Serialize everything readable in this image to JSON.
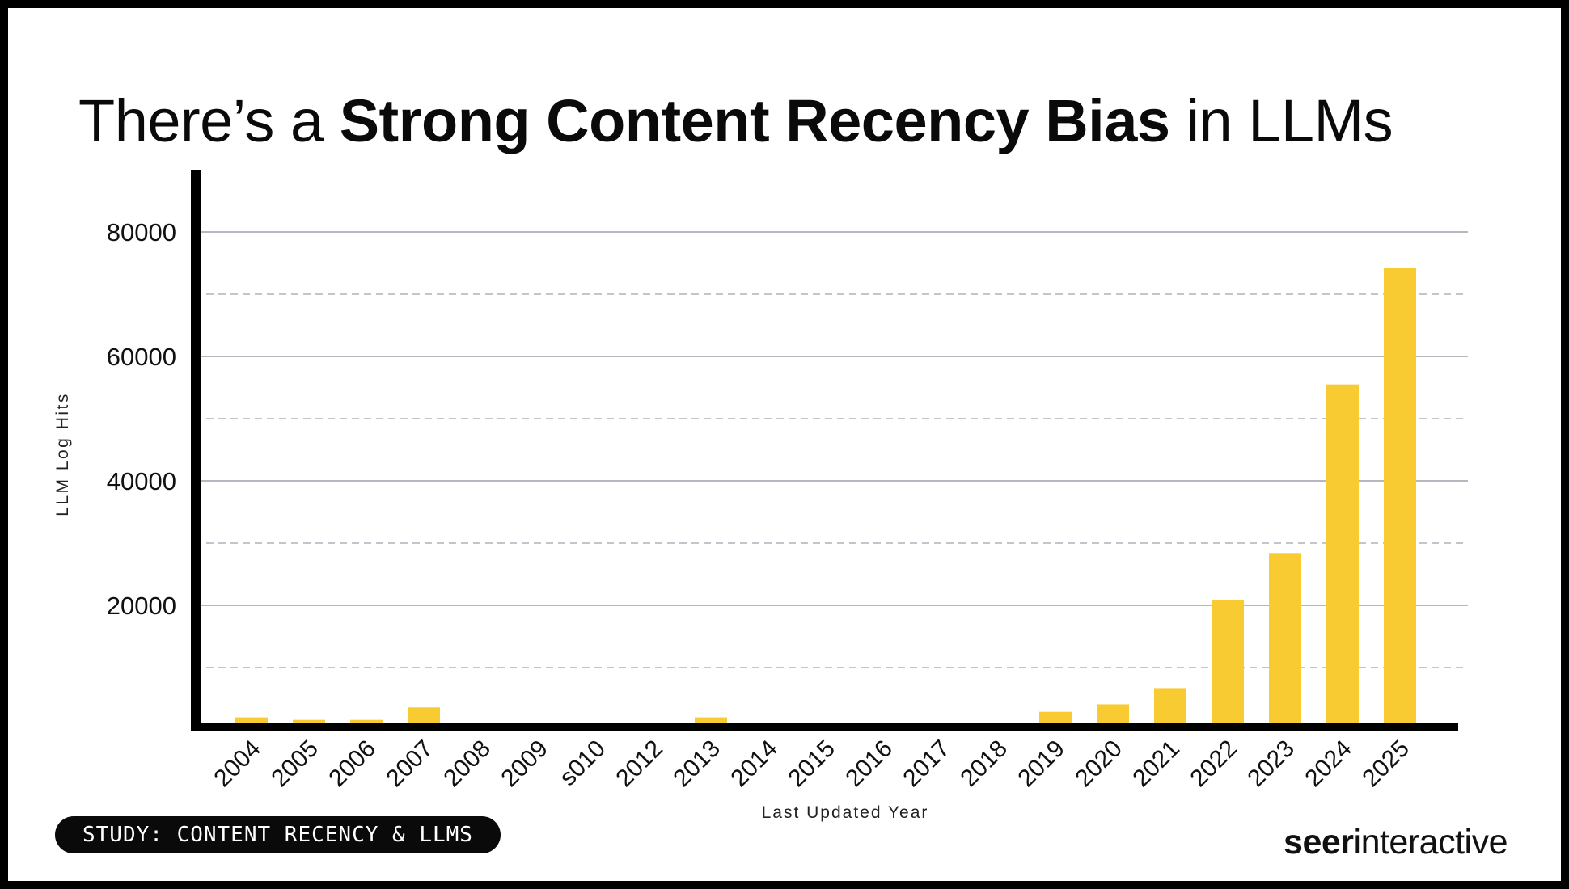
{
  "title": {
    "prefix": "There’s a ",
    "emphasis": "Strong Content Recency Bias",
    "suffix": " in LLMs"
  },
  "badge": {
    "label": "STUDY: CONTENT RECENCY & LLMS"
  },
  "logo": {
    "bold": "seer",
    "regular": "interactive"
  },
  "colors": {
    "bar": "#F9CB32",
    "axis": "#000000",
    "grid_solid": "#b7b7c2",
    "grid_dashed": "#c4c4cd",
    "tick_text": "#111111",
    "background": "#ffffff",
    "badge_bg": "#0a0a0a",
    "badge_text": "#ffffff"
  },
  "chart_data": {
    "type": "bar",
    "title": "There’s a Strong Content Recency Bias in LLMs",
    "xlabel": "Last Updated Year",
    "ylabel": "LLM Log Hits",
    "categories": [
      "2004",
      "2005",
      "2006",
      "2007",
      "2008",
      "2009",
      "s010",
      "2012",
      "2013",
      "2014",
      "2015",
      "2016",
      "2017",
      "2018",
      "2019",
      "2020",
      "2021",
      "2022",
      "2023",
      "2024",
      "2025"
    ],
    "values": [
      2000,
      1600,
      1600,
      3600,
      0,
      0,
      0,
      0,
      2000,
      0,
      0,
      0,
      0,
      0,
      2900,
      4100,
      6700,
      20800,
      28400,
      55500,
      74200
    ],
    "ylim": [
      0,
      90000
    ],
    "yticks_labeled": [
      20000,
      40000,
      60000,
      80000
    ],
    "yticks_dashed": [
      10000,
      30000,
      50000,
      70000
    ],
    "grid": "horizontal solid on labeled ticks, dashed on minor ticks",
    "legend": "none",
    "x_tick_rotation_deg": -45
  }
}
